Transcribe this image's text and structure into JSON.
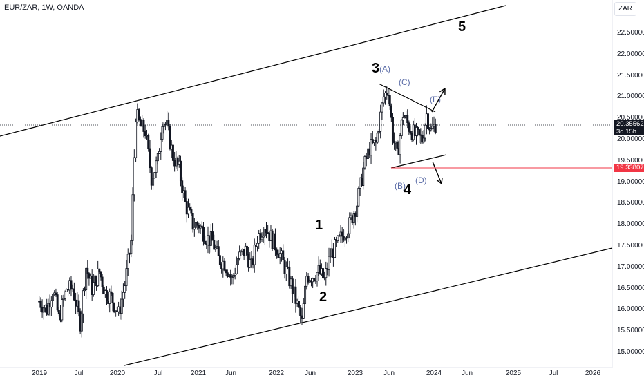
{
  "header": {
    "symbol": "EUR/ZAR, 1W, OANDA",
    "currency": "ZAR"
  },
  "price_tag": {
    "price": "20.35562",
    "countdown": "3d 15h"
  },
  "level_tag": {
    "price": "19.33807"
  },
  "colors": {
    "candle": "#131722",
    "price_line": "#131722",
    "level_line": "#f23645",
    "sub_wave": "#5d6ea8",
    "axis_bg": "#ffffff"
  },
  "chart_data": {
    "type": "candlestick",
    "title": "",
    "xlabel": "",
    "ylabel": "",
    "ylim": [
      14.8,
      23.7
    ],
    "y_ticks": [
      "22.50000",
      "22.00000",
      "21.50000",
      "21.00000",
      "20.50000",
      "20.00000",
      "19.50000",
      "19.00000",
      "18.50000",
      "18.00000",
      "17.50000",
      "17.00000",
      "16.50000",
      "16.00000",
      "15.50000",
      "15.00000"
    ],
    "x_ticks": [
      "2019",
      "Jul",
      "2020",
      "Jul",
      "2021",
      "Jun",
      "2022",
      "Jun",
      "2023",
      "Jun",
      "2024",
      "Jun",
      "2025",
      "Jul",
      "2026"
    ],
    "x_tick_dates": [
      "2019-01",
      "2019-07",
      "2020-01",
      "2020-07",
      "2021-01",
      "2021-06",
      "2022-01",
      "2022-06",
      "2023-01",
      "2023-06",
      "2024-01",
      "2024-06",
      "2025-01",
      "2025-07",
      "2026-01"
    ],
    "weekly_close": [
      [
        "2018-12-31",
        16.2
      ],
      [
        "2019-02-04",
        16.0
      ],
      [
        "2019-03-04",
        16.5
      ],
      [
        "2019-04-01",
        15.8
      ],
      [
        "2019-05-06",
        16.5
      ],
      [
        "2019-06-03",
        16.5
      ],
      [
        "2019-07-08",
        15.7
      ],
      [
        "2019-08-05",
        17.0
      ],
      [
        "2019-09-02",
        16.5
      ],
      [
        "2019-10-07",
        16.9
      ],
      [
        "2019-11-04",
        16.4
      ],
      [
        "2019-12-02",
        16.3
      ],
      [
        "2020-01-06",
        15.9
      ],
      [
        "2020-02-03",
        16.6
      ],
      [
        "2020-03-02",
        17.6
      ],
      [
        "2020-03-23",
        20.6
      ],
      [
        "2020-04-13",
        20.3
      ],
      [
        "2020-05-04",
        20.2
      ],
      [
        "2020-06-01",
        19.1
      ],
      [
        "2020-06-29",
        19.5
      ],
      [
        "2020-07-20",
        20.5
      ],
      [
        "2020-08-10",
        20.3
      ],
      [
        "2020-09-07",
        19.6
      ],
      [
        "2020-10-05",
        19.3
      ],
      [
        "2020-11-02",
        18.5
      ],
      [
        "2020-12-07",
        18.0
      ],
      [
        "2021-01-04",
        18.0
      ],
      [
        "2021-02-08",
        17.7
      ],
      [
        "2021-03-08",
        17.6
      ],
      [
        "2021-04-05",
        17.2
      ],
      [
        "2021-05-03",
        17.1
      ],
      [
        "2021-06-07",
        16.7
      ],
      [
        "2021-07-05",
        17.2
      ],
      [
        "2021-08-09",
        17.4
      ],
      [
        "2021-09-06",
        17.0
      ],
      [
        "2021-10-04",
        17.7
      ],
      [
        "2021-11-08",
        18.0
      ],
      [
        "2021-12-06",
        17.7
      ],
      [
        "2022-01-10",
        17.4
      ],
      [
        "2022-02-07",
        17.0
      ],
      [
        "2022-03-07",
        16.6
      ],
      [
        "2022-04-04",
        16.1
      ],
      [
        "2022-04-25",
        15.7
      ],
      [
        "2022-05-16",
        16.8
      ],
      [
        "2022-06-13",
        16.8
      ],
      [
        "2022-07-11",
        16.9
      ],
      [
        "2022-08-08",
        16.7
      ],
      [
        "2022-09-05",
        17.3
      ],
      [
        "2022-10-03",
        17.5
      ],
      [
        "2022-11-07",
        17.8
      ],
      [
        "2022-12-05",
        18.0
      ],
      [
        "2023-01-09",
        18.5
      ],
      [
        "2023-02-06",
        19.3
      ],
      [
        "2023-03-06",
        19.8
      ],
      [
        "2023-04-03",
        19.9
      ],
      [
        "2023-05-08",
        21.0
      ],
      [
        "2023-05-29",
        21.2
      ],
      [
        "2023-06-19",
        20.1
      ],
      [
        "2023-07-10",
        19.6
      ],
      [
        "2023-08-07",
        20.6
      ],
      [
        "2023-09-04",
        20.3
      ],
      [
        "2023-10-02",
        20.1
      ],
      [
        "2023-11-06",
        20.0
      ],
      [
        "2023-11-27",
        20.6
      ],
      [
        "2023-12-18",
        20.2
      ],
      [
        "2024-01-08",
        20.35562
      ]
    ],
    "annotations": [
      {
        "label": "5",
        "kind": "wave"
      },
      {
        "label": "3",
        "kind": "wave"
      },
      {
        "label": "(A)",
        "kind": "sub-wave"
      },
      {
        "label": "(C)",
        "kind": "sub-wave"
      },
      {
        "label": "(E)",
        "kind": "sub-wave"
      },
      {
        "label": "(B)",
        "kind": "sub-wave"
      },
      {
        "label": "(D)",
        "kind": "sub-wave"
      },
      {
        "label": "4",
        "kind": "wave"
      },
      {
        "label": "1",
        "kind": "wave"
      },
      {
        "label": "2",
        "kind": "wave"
      }
    ]
  }
}
